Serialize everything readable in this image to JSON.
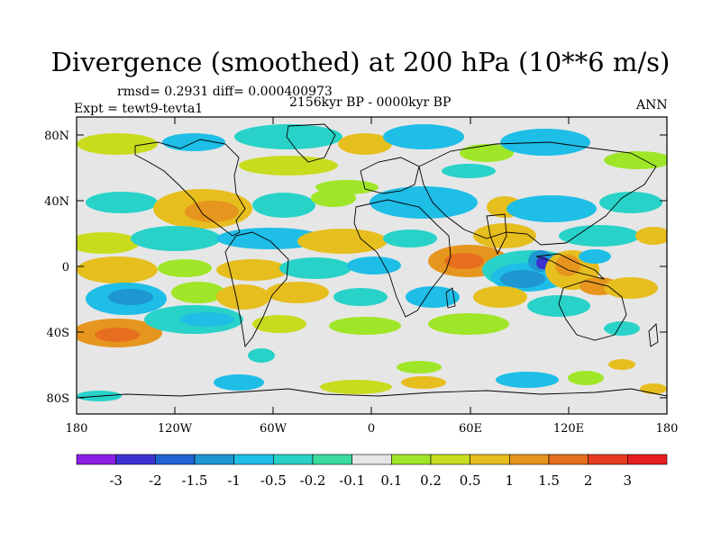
{
  "title": "Divergence (smoothed) at 200 hPa (10**6 m/s)",
  "stats_line": "rmsd= 0.2931 diff= 0.000400973",
  "experiment": "Expt = tewt9-tevta1",
  "period": "2156kyr BP - 0000kyr BP",
  "season": "ANN",
  "lat_labels": [
    "80N",
    "40N",
    "0",
    "40S",
    "80S"
  ],
  "lon_labels": [
    "180",
    "120W",
    "60W",
    "0",
    "60E",
    "120E",
    "180"
  ],
  "colorbar": {
    "labels": [
      "-3",
      "-2",
      "-1.5",
      "-1",
      "-0.5",
      "-0.2",
      "-0.1",
      "0.1",
      "0.2",
      "0.5",
      "1",
      "1.5",
      "2",
      "3"
    ],
    "colors": [
      "#8c1ee6",
      "#3c32d2",
      "#1e64d2",
      "#1e96d2",
      "#1ebee6",
      "#28d2c8",
      "#3cdca0",
      "#e6e6e6",
      "#a0e628",
      "#c8dc1e",
      "#e6be1e",
      "#e6961e",
      "#e66e1e",
      "#e63c1e",
      "#e61e1e"
    ]
  },
  "colors": {
    "background": "#e6e6e6",
    "coast": "#000000"
  }
}
